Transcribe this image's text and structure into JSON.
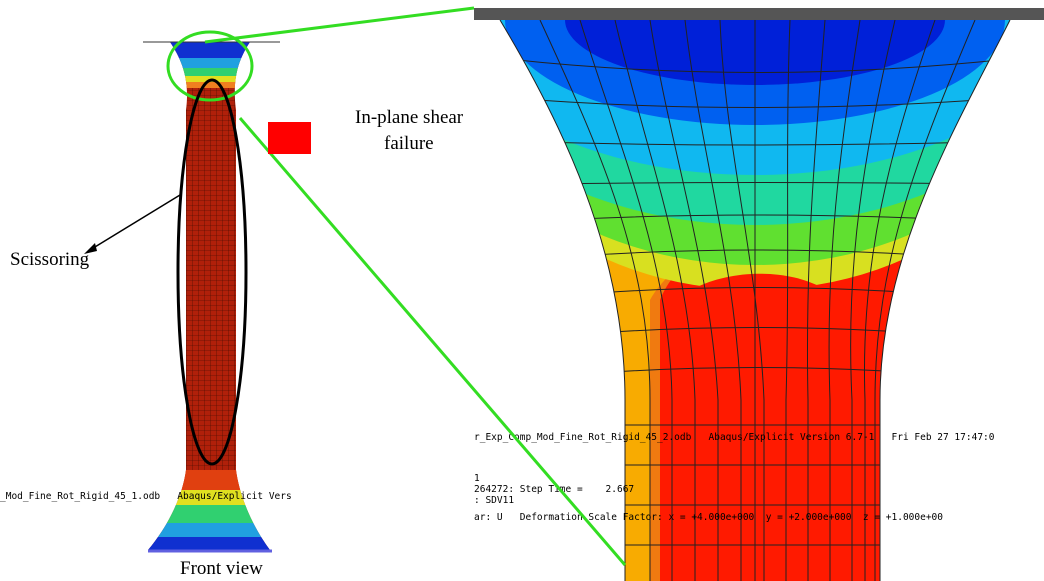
{
  "labels": {
    "shear_line1": "In-plane shear",
    "shear_line2": "failure",
    "scissoring": "Scissoring",
    "front_view": "Front view"
  },
  "left_overlay": {
    "line1": "_Mod_Fine_Rot_Rigid_45_1.odb   Abaqus/Explicit Vers"
  },
  "right_overlay": {
    "line1": "r_Exp_Comp_Mod_Fine_Rot_Rigid_45_2.odb   Abaqus/Explicit Version 6.7-1   Fri Feb 27 17:47:0",
    "line2": "1",
    "line3": "264272: Step Time =    2.667",
    "line4": ": SDV11",
    "line5": "ar: U   Deformation Scale Factor: x = +4.000e+000  y = +2.000e+000  z = +1.000e+00"
  }
}
